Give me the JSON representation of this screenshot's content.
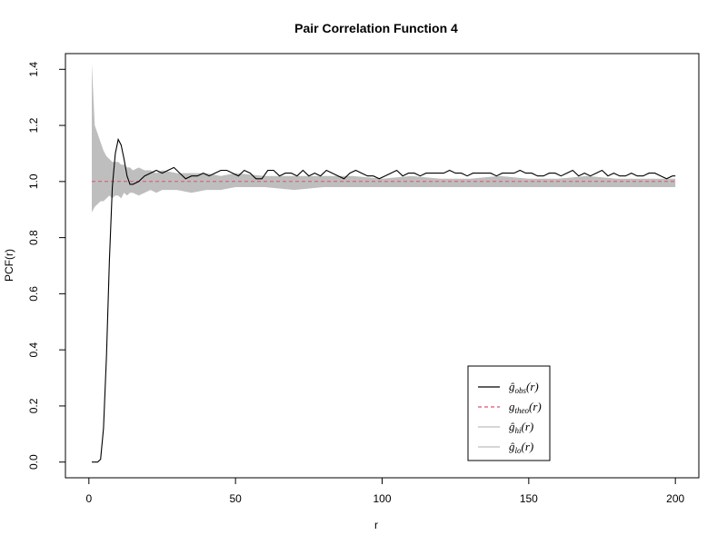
{
  "chart_data": {
    "type": "line",
    "title": "Pair Correlation Function 4",
    "xlabel": "r",
    "ylabel": "PCF(r)",
    "xlim": [
      0,
      200
    ],
    "ylim": [
      0,
      1.4
    ],
    "x_ticks": [
      0,
      50,
      100,
      150,
      200
    ],
    "y_ticks": [
      0.0,
      0.2,
      0.4,
      0.6,
      0.8,
      1.0,
      1.2,
      1.4
    ],
    "grid": false,
    "legend_position": "bottom-right",
    "series": [
      {
        "name": "ĝobs(r)",
        "style": "solid",
        "color": "#000000",
        "x": [
          1,
          2,
          3,
          4,
          5,
          6,
          7,
          8,
          9,
          10,
          11,
          12,
          13,
          14,
          15,
          17,
          19,
          21,
          23,
          25,
          27,
          29,
          31,
          33,
          35,
          37,
          39,
          41,
          43,
          45,
          47,
          49,
          51,
          53,
          55,
          57,
          59,
          61,
          63,
          65,
          67,
          69,
          71,
          73,
          75,
          77,
          79,
          81,
          83,
          85,
          87,
          89,
          91,
          93,
          95,
          97,
          99,
          101,
          103,
          105,
          107,
          109,
          111,
          113,
          115,
          117,
          119,
          121,
          123,
          125,
          127,
          129,
          131,
          133,
          135,
          137,
          139,
          141,
          143,
          145,
          147,
          149,
          151,
          153,
          155,
          157,
          159,
          161,
          163,
          165,
          167,
          169,
          171,
          173,
          175,
          177,
          179,
          181,
          183,
          185,
          187,
          189,
          191,
          193,
          195,
          197,
          199,
          200
        ],
        "y": [
          0.0,
          0.0,
          0.0,
          0.01,
          0.12,
          0.38,
          0.72,
          0.98,
          1.1,
          1.15,
          1.13,
          1.08,
          1.02,
          0.99,
          0.99,
          1.0,
          1.02,
          1.03,
          1.04,
          1.03,
          1.04,
          1.05,
          1.03,
          1.01,
          1.02,
          1.02,
          1.03,
          1.02,
          1.03,
          1.04,
          1.04,
          1.03,
          1.02,
          1.04,
          1.03,
          1.01,
          1.01,
          1.04,
          1.04,
          1.02,
          1.03,
          1.03,
          1.02,
          1.04,
          1.02,
          1.03,
          1.02,
          1.04,
          1.03,
          1.02,
          1.01,
          1.03,
          1.04,
          1.03,
          1.02,
          1.02,
          1.01,
          1.02,
          1.03,
          1.04,
          1.02,
          1.03,
          1.03,
          1.02,
          1.03,
          1.03,
          1.03,
          1.03,
          1.04,
          1.03,
          1.03,
          1.02,
          1.03,
          1.03,
          1.03,
          1.03,
          1.02,
          1.03,
          1.03,
          1.03,
          1.04,
          1.03,
          1.03,
          1.02,
          1.02,
          1.03,
          1.03,
          1.02,
          1.03,
          1.04,
          1.02,
          1.03,
          1.02,
          1.03,
          1.04,
          1.02,
          1.03,
          1.02,
          1.02,
          1.03,
          1.02,
          1.02,
          1.03,
          1.03,
          1.02,
          1.01,
          1.02,
          1.02
        ]
      },
      {
        "name": "gtheo(r)",
        "style": "dashed",
        "color": "#df536b",
        "x": [
          1,
          200
        ],
        "y": [
          1.0,
          1.0
        ]
      },
      {
        "name": "ĝhi(r)",
        "style": "envelope",
        "color": "#bebebe",
        "x": [
          1,
          2,
          3,
          4,
          5,
          6,
          7,
          8,
          9,
          10,
          11,
          12,
          13,
          14,
          15,
          17,
          19,
          21,
          23,
          25,
          30,
          35,
          40,
          45,
          50,
          60,
          70,
          80,
          90,
          100,
          110,
          120,
          130,
          140,
          150,
          160,
          170,
          180,
          190,
          200
        ],
        "y": [
          1.42,
          1.2,
          1.17,
          1.14,
          1.11,
          1.09,
          1.08,
          1.07,
          1.07,
          1.07,
          1.06,
          1.06,
          1.05,
          1.05,
          1.04,
          1.05,
          1.04,
          1.04,
          1.03,
          1.04,
          1.03,
          1.03,
          1.03,
          1.02,
          1.03,
          1.02,
          1.02,
          1.02,
          1.02,
          1.01,
          1.02,
          1.01,
          1.01,
          1.02,
          1.01,
          1.01,
          1.02,
          1.01,
          1.01,
          1.01
        ]
      },
      {
        "name": "ĝlo(r)",
        "style": "envelope",
        "color": "#bebebe",
        "x": [
          1,
          2,
          3,
          4,
          5,
          6,
          7,
          8,
          9,
          10,
          11,
          12,
          13,
          14,
          15,
          17,
          19,
          21,
          23,
          25,
          30,
          35,
          40,
          45,
          50,
          60,
          70,
          80,
          90,
          100,
          110,
          120,
          130,
          140,
          150,
          160,
          170,
          180,
          190,
          200
        ],
        "y": [
          0.89,
          0.91,
          0.92,
          0.93,
          0.93,
          0.94,
          0.95,
          0.94,
          0.95,
          0.95,
          0.94,
          0.96,
          0.95,
          0.96,
          0.96,
          0.95,
          0.96,
          0.97,
          0.96,
          0.97,
          0.97,
          0.96,
          0.97,
          0.97,
          0.98,
          0.98,
          0.97,
          0.98,
          0.98,
          0.98,
          0.98,
          0.98,
          0.98,
          0.98,
          0.98,
          0.98,
          0.98,
          0.98,
          0.98,
          0.98
        ]
      }
    ],
    "legend": [
      {
        "base": "ĝ",
        "sub": "obs",
        "suffix": "(r)",
        "style": "solid",
        "color": "#000000"
      },
      {
        "base": "g",
        "sub": "theo",
        "suffix": "(r)",
        "style": "dashed",
        "color": "#df536b"
      },
      {
        "base": "ĝ",
        "sub": "hi",
        "suffix": "(r)",
        "style": "solid",
        "color": "#bebebe"
      },
      {
        "base": "ĝ",
        "sub": "lo",
        "suffix": "(r)",
        "style": "solid",
        "color": "#bebebe"
      }
    ]
  }
}
